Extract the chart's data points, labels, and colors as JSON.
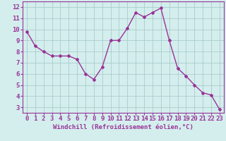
{
  "x": [
    0,
    1,
    2,
    3,
    4,
    5,
    6,
    7,
    8,
    9,
    10,
    11,
    12,
    13,
    14,
    15,
    16,
    17,
    18,
    19,
    20,
    21,
    22,
    23
  ],
  "y": [
    9.8,
    8.5,
    8.0,
    7.6,
    7.6,
    7.6,
    7.3,
    6.0,
    5.5,
    6.6,
    9.0,
    9.0,
    10.1,
    11.5,
    11.1,
    11.5,
    11.9,
    9.0,
    6.5,
    5.8,
    5.0,
    4.3,
    4.1,
    2.8
  ],
  "line_color": "#993399",
  "marker": "D",
  "marker_size": 2.0,
  "bg_color": "#d4eeed",
  "grid_color": "#a8cccc",
  "xlabel": "Windchill (Refroidissement éolien,°C)",
  "ylabel": "",
  "xlim": [
    -0.5,
    23.5
  ],
  "ylim": [
    2.5,
    12.5
  ],
  "yticks": [
    3,
    4,
    5,
    6,
    7,
    8,
    9,
    10,
    11,
    12
  ],
  "xticks": [
    0,
    1,
    2,
    3,
    4,
    5,
    6,
    7,
    8,
    9,
    10,
    11,
    12,
    13,
    14,
    15,
    16,
    17,
    18,
    19,
    20,
    21,
    22,
    23
  ],
  "axis_color": "#993399",
  "tick_label_color": "#993399",
  "xlabel_color": "#993399",
  "xlabel_fontsize": 6.5,
  "tick_fontsize": 6.5,
  "line_width": 1.0
}
